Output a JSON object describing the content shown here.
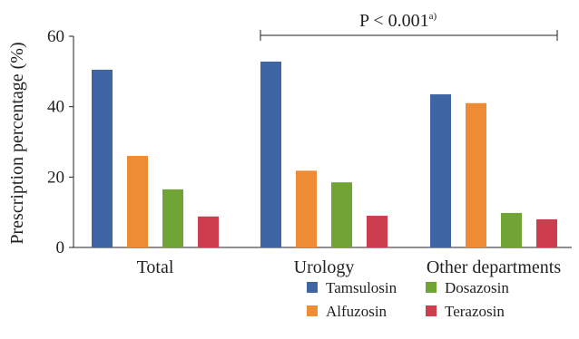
{
  "chart_data": {
    "type": "bar",
    "ylabel": "Prescription percentage (%)",
    "xlabel": "",
    "ylim": [
      0,
      60
    ],
    "yticks": [
      "0",
      "20",
      "40",
      "60"
    ],
    "categories": [
      "Total",
      "Urology",
      "Other departments"
    ],
    "series": [
      {
        "name": "Tamsulosin",
        "color": "#3f65a4",
        "values": [
          50.5,
          52.8,
          43.5
        ]
      },
      {
        "name": "Alfuzosin",
        "color": "#ee8c35",
        "values": [
          26,
          21.8,
          41
        ]
      },
      {
        "name": "Dosazosin",
        "color": "#70a536",
        "values": [
          16.5,
          18.5,
          9.8
        ]
      },
      {
        "name": "Terazosin",
        "color": "#cc3d4d",
        "values": [
          8.8,
          9,
          8
        ]
      }
    ],
    "annotation": {
      "text": "P < 0.001",
      "superscript": "a)"
    },
    "legend_position": "bottom-right"
  }
}
